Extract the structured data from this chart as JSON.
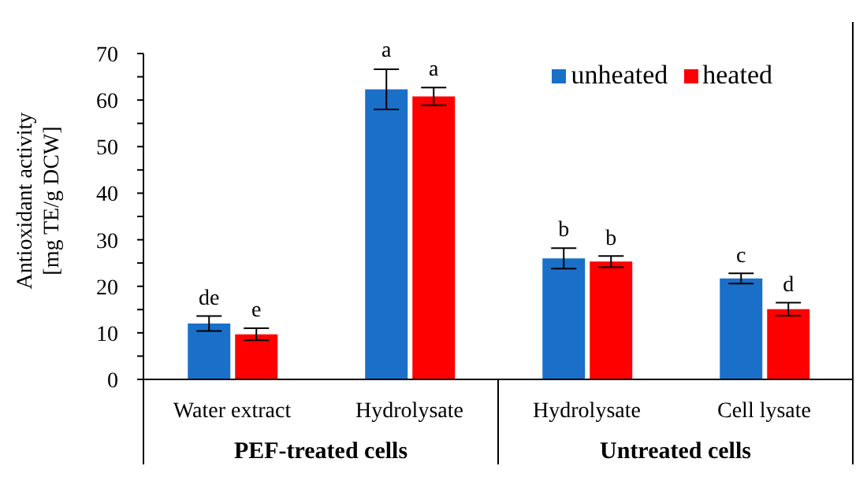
{
  "chart_data": {
    "type": "bar",
    "ylabel": "Antioxidant activity\n[mg TE/g DCW]",
    "categories": [
      "Water extract",
      "Hydrolysate",
      "Hydrolysate",
      "Cell lysate"
    ],
    "series": [
      {
        "name": "unheated",
        "color": "#1a6fc9",
        "values": [
          12.0,
          62.3,
          26.0,
          21.7
        ],
        "errors": [
          1.6,
          4.3,
          2.2,
          1.1
        ],
        "value_labels": [
          "de",
          "a",
          "b",
          "c"
        ]
      },
      {
        "name": "heated",
        "color": "#ff0000",
        "values": [
          9.7,
          60.8,
          25.3,
          15.1
        ],
        "errors": [
          1.3,
          1.9,
          1.2,
          1.4
        ],
        "value_labels": [
          "e",
          "a",
          "b",
          "d"
        ]
      }
    ],
    "ylim": [
      0,
      70
    ],
    "yticks": [
      0,
      {
        "value": 5,
        "label": null
      },
      10,
      {
        "value": 15,
        "label": null
      },
      20,
      {
        "value": 25,
        "label": null
      },
      30,
      {
        "value": 35,
        "label": null
      },
      40,
      {
        "value": 45,
        "label": null
      },
      50,
      {
        "value": 55,
        "label": null
      },
      60,
      {
        "value": 65,
        "label": null
      },
      70
    ],
    "grid": false,
    "legend": "top right",
    "annotations": [
      "PEF-treated cells",
      "Untreated cells"
    ]
  }
}
